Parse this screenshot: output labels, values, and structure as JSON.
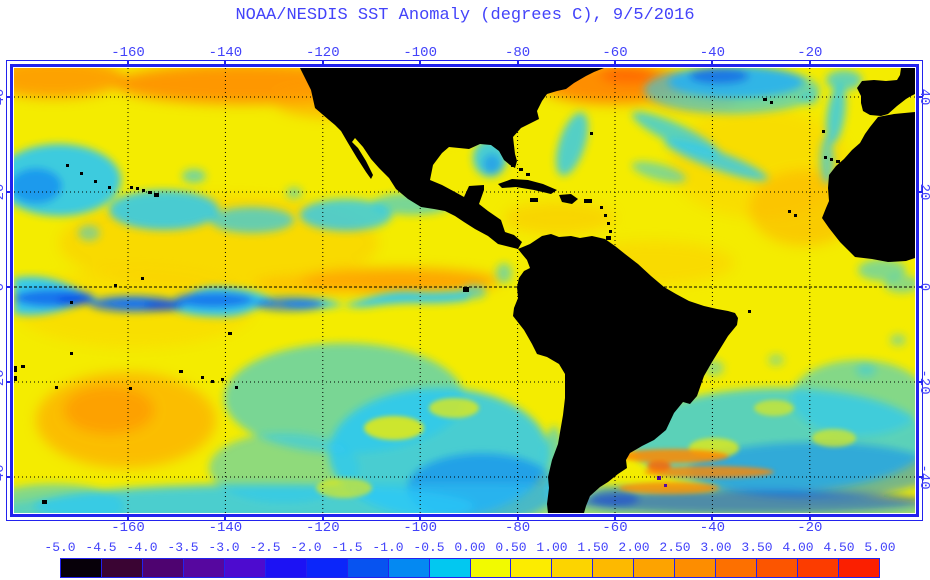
{
  "title": "NOAA/NESDIS SST Anomaly (degrees C), 9/5/2016",
  "colors": {
    "background": "#ffffff",
    "text_blue": "#4343fa",
    "frame_blue": "#2222ee",
    "land_black": "#000000",
    "ocean_base_yellow": "#f4ec00",
    "grid_black": "#000000"
  },
  "axes": {
    "lon_ticks": [
      {
        "label": "-160",
        "value": -160
      },
      {
        "label": "-140",
        "value": -140
      },
      {
        "label": "-120",
        "value": -120
      },
      {
        "label": "-100",
        "value": -100
      },
      {
        "label": "-80",
        "value": -80
      },
      {
        "label": "-60",
        "value": -60
      },
      {
        "label": "-40",
        "value": -40
      },
      {
        "label": "-20",
        "value": -20
      }
    ],
    "lat_ticks": [
      {
        "label": "40",
        "value": 40
      },
      {
        "label": "20",
        "value": 20
      },
      {
        "label": "0",
        "value": 0
      },
      {
        "label": "-20",
        "value": -20
      },
      {
        "label": "-40",
        "value": -40
      }
    ]
  },
  "colorbar": {
    "units": "degrees C",
    "labels": [
      "-5.0",
      "-4.5",
      "-4.0",
      "-3.5",
      "-3.0",
      "-2.5",
      "-2.0",
      "-1.5",
      "-1.0",
      "-0.5",
      "0.00",
      "0.50",
      "1.00",
      "1.50",
      "2.00",
      "2.50",
      "3.00",
      "3.50",
      "4.00",
      "4.50",
      "5.00"
    ],
    "cells": [
      {
        "min": -5.0,
        "max": -4.5,
        "color": "#070009"
      },
      {
        "min": -4.5,
        "max": -4.0,
        "color": "#3a0433"
      },
      {
        "min": -4.0,
        "max": -3.5,
        "color": "#4e0370"
      },
      {
        "min": -3.5,
        "max": -3.0,
        "color": "#56079f"
      },
      {
        "min": -3.0,
        "max": -2.5,
        "color": "#4d0bcf"
      },
      {
        "min": -2.5,
        "max": -2.0,
        "color": "#1c12f4"
      },
      {
        "min": -2.0,
        "max": -1.5,
        "color": "#0b26fa"
      },
      {
        "min": -1.5,
        "max": -1.0,
        "color": "#0753f0"
      },
      {
        "min": -1.0,
        "max": -0.5,
        "color": "#0489f2"
      },
      {
        "min": -0.5,
        "max": 0.0,
        "color": "#02c8f0"
      },
      {
        "min": 0.0,
        "max": 0.5,
        "color": "#f2fa00"
      },
      {
        "min": 0.5,
        "max": 1.0,
        "color": "#fcec00"
      },
      {
        "min": 1.0,
        "max": 1.5,
        "color": "#fcd400"
      },
      {
        "min": 1.5,
        "max": 2.0,
        "color": "#fdb900"
      },
      {
        "min": 2.0,
        "max": 2.5,
        "color": "#fda300"
      },
      {
        "min": 2.5,
        "max": 3.0,
        "color": "#fd8d00"
      },
      {
        "min": 3.0,
        "max": 3.5,
        "color": "#fd7000"
      },
      {
        "min": 3.5,
        "max": 4.0,
        "color": "#fc5500"
      },
      {
        "min": 4.0,
        "max": 4.5,
        "color": "#fc3c00"
      },
      {
        "min": 4.5,
        "max": 5.0,
        "color": "#fb1f00"
      }
    ]
  },
  "chart_data": {
    "type": "heatmap",
    "title": "NOAA/NESDIS SST Anomaly (degrees C), 9/5/2016",
    "x_ticks": [
      -160,
      -140,
      -120,
      -100,
      -80,
      -60,
      -40,
      -20
    ],
    "y_ticks": [
      40,
      20,
      0,
      -20,
      -40
    ],
    "xlim": [
      -183,
      2
    ],
    "ylim": [
      -47,
      46
    ],
    "colorbar_range": [
      -5.0,
      5.0
    ],
    "colorbar_step": 0.5,
    "grid": "dotted black at every 20 degrees",
    "features": [
      "ocean mostly +0.25 to +1.0 C (yellow) with warmer +1 to +2 C (orange) bands in the NW Pacific, NW Atlantic Gulf Stream and central South Pacific",
      "cool cyan/blue tropical-instability wave tongue (-0.5 to -1.5 C) along the equatorial Pacific from the dateline to ~-100",
      "patchy cyan band near 30-35N across the central North Pacific",
      "large cool region (-0.5 to -1.5 C) in the SE Pacific and across the Southern Ocean edge",
      "cool patch and streaks in the central North Atlantic near 40-45N",
      "cool water along the NW Africa coast and in the Gulf of Guinea",
      "South Atlantic south of -25S mostly cool with warm eddy streaks near -40S",
      "land masses (North America, South America, Iberia, NW Africa, islands) masked black"
    ]
  }
}
